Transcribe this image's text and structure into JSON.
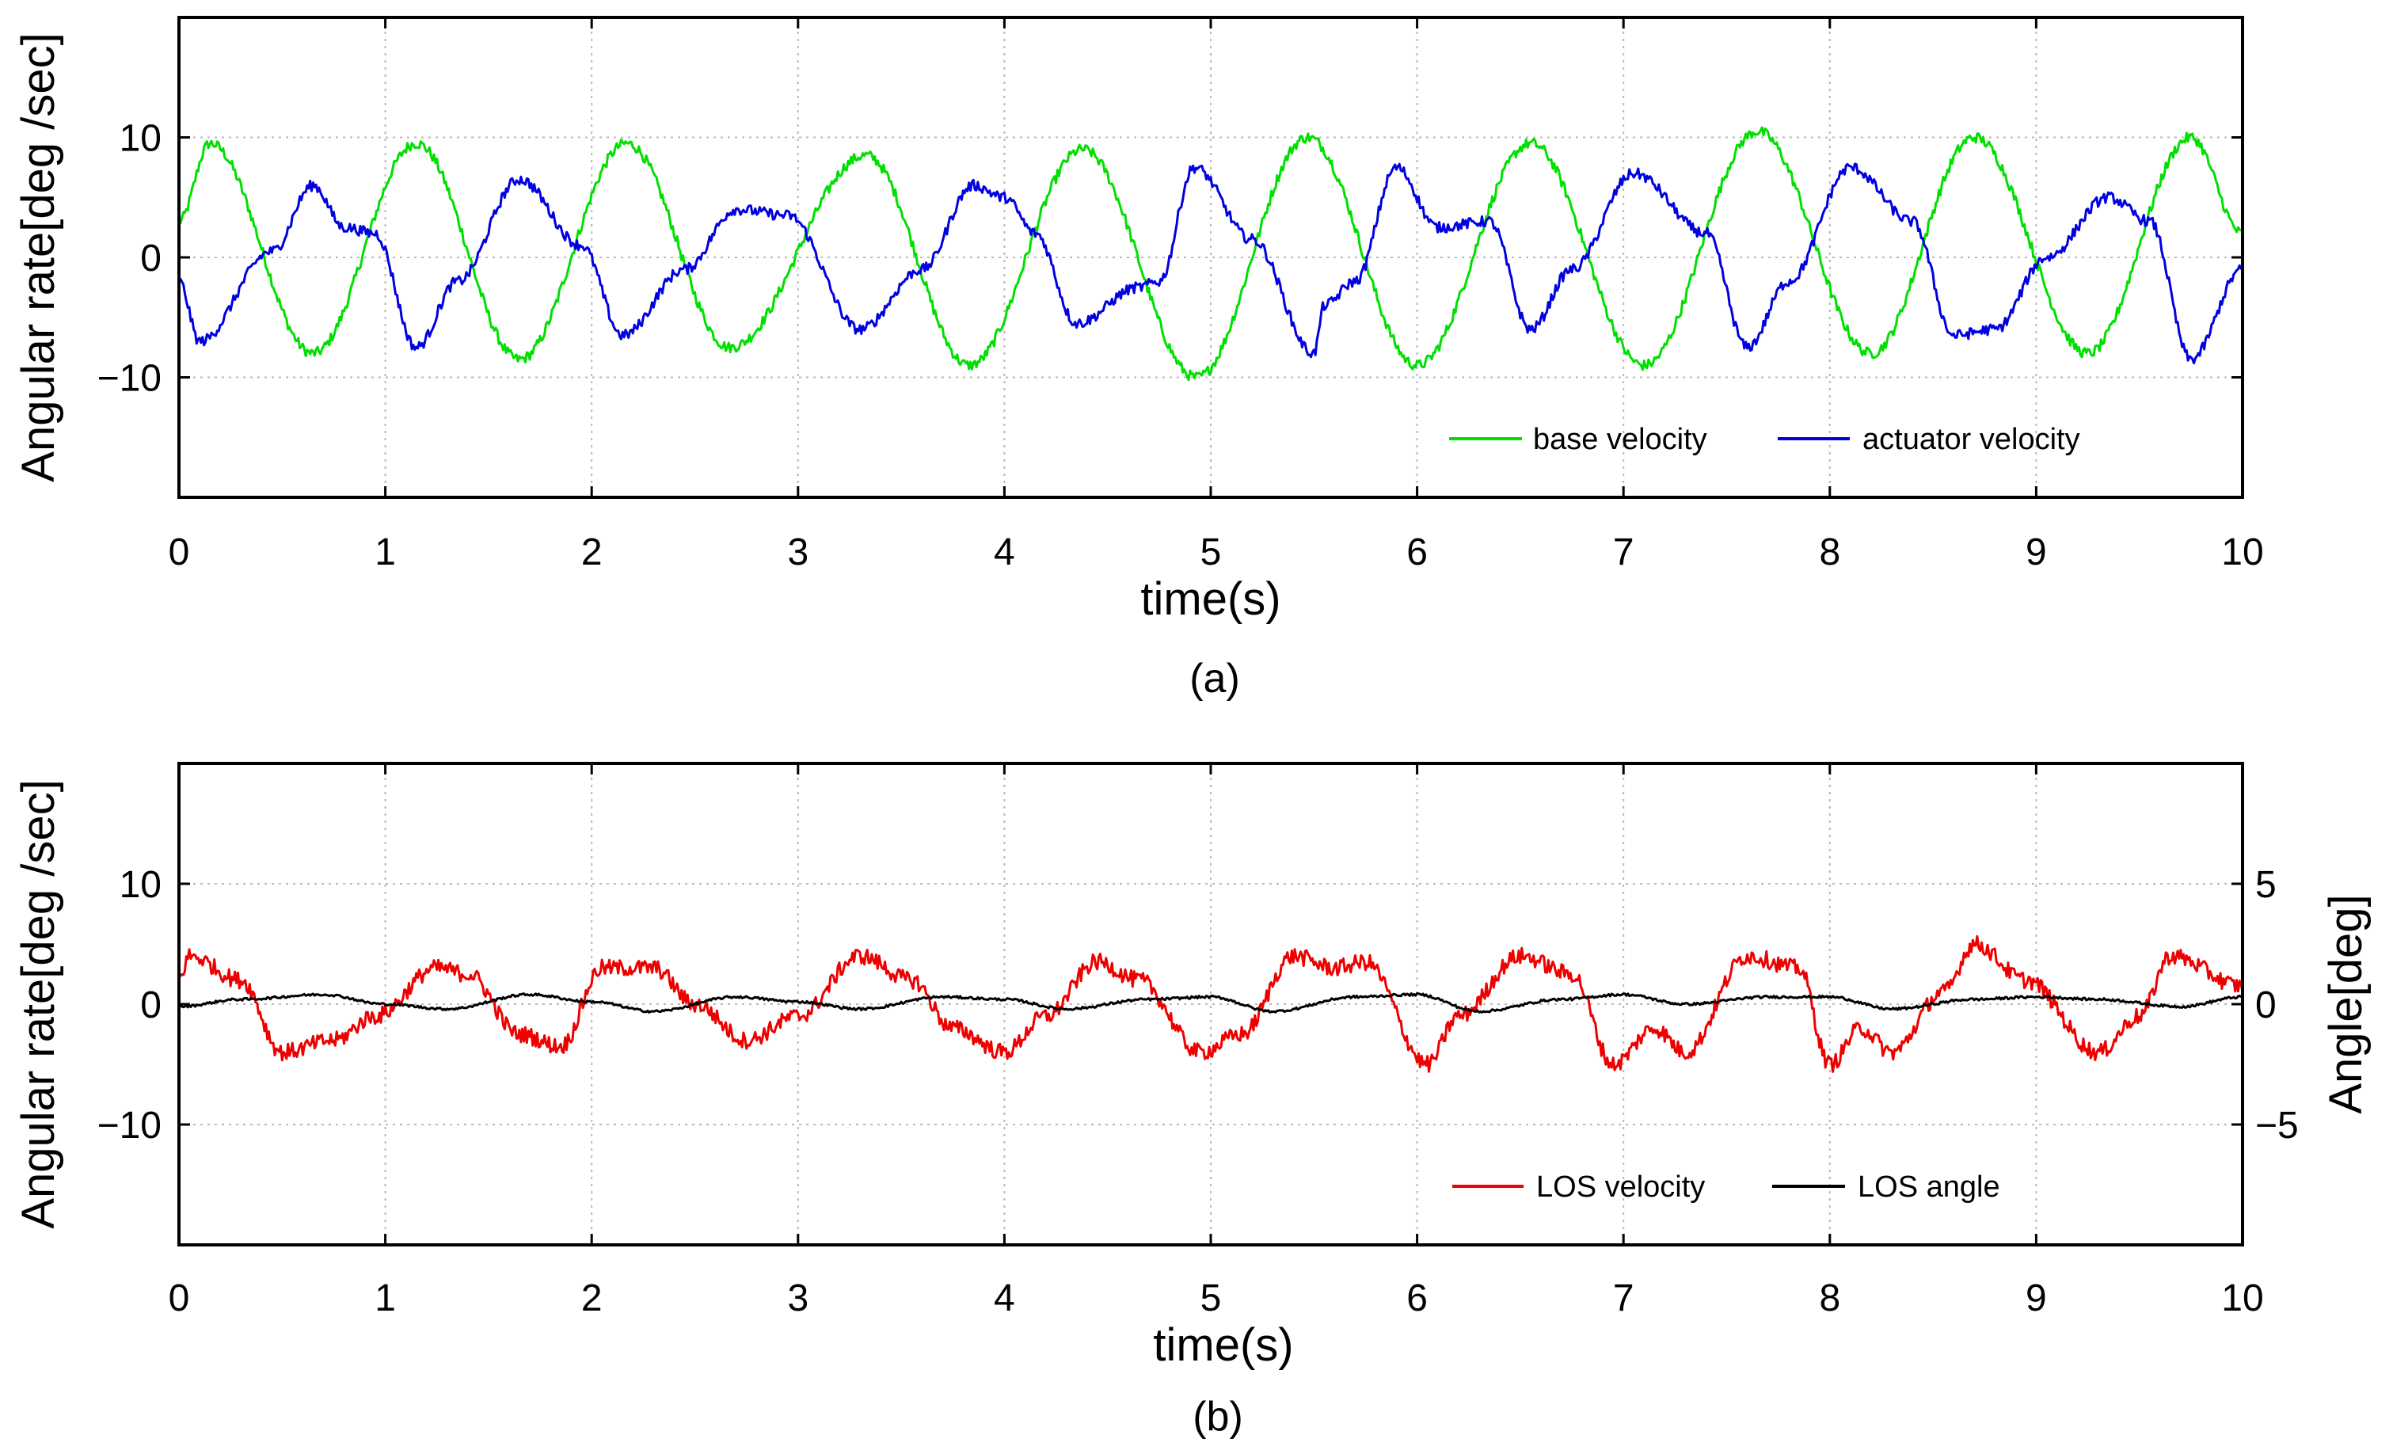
{
  "chart_data": [
    {
      "id": "a",
      "type": "line",
      "caption": "(a)",
      "xlabel": "time(s)",
      "ylabel": "Angular rate[deg /sec]",
      "xlim": [
        0,
        10
      ],
      "ylim": [
        -20,
        20
      ],
      "xticks": [
        0,
        1,
        2,
        3,
        4,
        5,
        6,
        7,
        8,
        9,
        10
      ],
      "yticks": [
        -10,
        0,
        10
      ],
      "ytick_labels": [
        "−10",
        "0",
        "10"
      ],
      "grid": true,
      "legend_position": "bottom-right",
      "series": [
        {
          "name": "base velocity",
          "color": "#00e000",
          "x": [
            0,
            0.15,
            0.65,
            1.15,
            1.65,
            2.17,
            2.67,
            3.33,
            3.83,
            4.38,
            4.93,
            5.47,
            6.0,
            6.55,
            7.1,
            7.65,
            8.2,
            8.7,
            9.25,
            9.75,
            10.0
          ],
          "y": [
            3,
            9.5,
            -8,
            9.5,
            -8.5,
            9.5,
            -7.5,
            8.5,
            -9,
            9,
            -10,
            10,
            -9,
            9.5,
            -9,
            10.5,
            -8,
            10,
            -8,
            10,
            2
          ]
        },
        {
          "name": "actuator velocity",
          "color": "#0000e0",
          "x": [
            0,
            0.1,
            0.45,
            0.65,
            0.8,
            0.95,
            1.15,
            1.35,
            1.65,
            1.95,
            2.15,
            2.45,
            2.7,
            2.95,
            3.3,
            3.6,
            3.85,
            4.0,
            4.15,
            4.35,
            4.65,
            4.75,
            4.92,
            5.2,
            5.5,
            5.55,
            5.7,
            5.9,
            6.1,
            6.35,
            6.55,
            6.75,
            7.05,
            7.4,
            7.6,
            7.8,
            8.1,
            8.4,
            8.6,
            8.8,
            9.05,
            9.35,
            9.55,
            9.75,
            10.0
          ],
          "y": [
            -2,
            -7,
            0.5,
            6,
            2.5,
            2,
            -7.5,
            -2,
            6.5,
            1,
            -6.5,
            -1,
            4,
            3.5,
            -6,
            -1,
            6,
            5,
            2,
            -5.5,
            -2.5,
            -2,
            7.5,
            1.5,
            -8,
            -4,
            -2,
            7.5,
            2.5,
            3,
            -6,
            -1,
            7,
            2,
            -7.5,
            -2,
            7.5,
            3,
            -6.5,
            -6,
            0,
            5,
            3,
            -8.5,
            -1
          ]
        }
      ]
    },
    {
      "id": "b",
      "type": "line",
      "caption": "(b)",
      "xlabel": "time(s)",
      "ylabel": "Angular rate[deg /sec]",
      "ylabel_right": "Angle[deg]",
      "xlim": [
        0,
        10
      ],
      "ylim": [
        -20,
        20
      ],
      "ylim_right": [
        -10,
        10
      ],
      "xticks": [
        0,
        1,
        2,
        3,
        4,
        5,
        6,
        7,
        8,
        9,
        10
      ],
      "yticks": [
        -10,
        0,
        10
      ],
      "ytick_labels": [
        "−10",
        "0",
        "10"
      ],
      "yticks_right": [
        -5,
        0,
        5
      ],
      "ytick_labels_right": [
        "−5",
        "0",
        "5"
      ],
      "grid": true,
      "legend_position": "bottom-right",
      "series": [
        {
          "name": "LOS velocity",
          "color": "#ee0000",
          "axis": "left",
          "x": [
            0,
            0.05,
            0.3,
            0.5,
            0.75,
            0.95,
            1.25,
            1.4,
            1.65,
            1.85,
            2.05,
            2.3,
            2.5,
            2.75,
            3.0,
            3.3,
            3.55,
            3.75,
            4.0,
            4.2,
            4.45,
            4.65,
            4.95,
            5.15,
            5.4,
            5.6,
            5.75,
            6.05,
            6.2,
            6.5,
            6.75,
            6.95,
            7.15,
            7.3,
            7.6,
            7.85,
            8.0,
            8.15,
            8.3,
            8.55,
            8.7,
            8.95,
            9.3,
            9.5,
            9.65,
            10.0
          ],
          "y": [
            2,
            4,
            2,
            -4,
            -3,
            -1,
            3,
            2.5,
            -2.5,
            -3.5,
            3,
            3,
            0,
            -3,
            -1,
            4,
            2,
            -2,
            -4,
            -1,
            3.5,
            2,
            -4,
            -2.5,
            4,
            3,
            3.5,
            -5,
            -1,
            4,
            2.5,
            -5,
            -2,
            -4,
            4,
            3,
            -5,
            -2,
            -4,
            1,
            5,
            2,
            -4,
            -1,
            4,
            1.5
          ]
        },
        {
          "name": "LOS angle",
          "color": "#000000",
          "axis": "right",
          "x": [
            0,
            0.3,
            0.7,
            1.0,
            1.3,
            1.7,
            2.0,
            2.3,
            2.7,
            3.0,
            3.3,
            3.7,
            4.0,
            4.3,
            4.7,
            5.0,
            5.3,
            5.7,
            6.0,
            6.3,
            6.7,
            7.0,
            7.3,
            7.7,
            8.0,
            8.3,
            8.7,
            9.0,
            9.3,
            9.7,
            10.0
          ],
          "y": [
            -0.1,
            0.2,
            0.4,
            0.0,
            -0.2,
            0.4,
            0.1,
            -0.3,
            0.3,
            0.1,
            -0.2,
            0.3,
            0.2,
            -0.2,
            0.2,
            0.3,
            -0.3,
            0.3,
            0.4,
            -0.3,
            0.2,
            0.4,
            0.0,
            0.3,
            0.3,
            -0.2,
            0.2,
            0.3,
            0.2,
            -0.1,
            0.3
          ]
        }
      ]
    }
  ]
}
